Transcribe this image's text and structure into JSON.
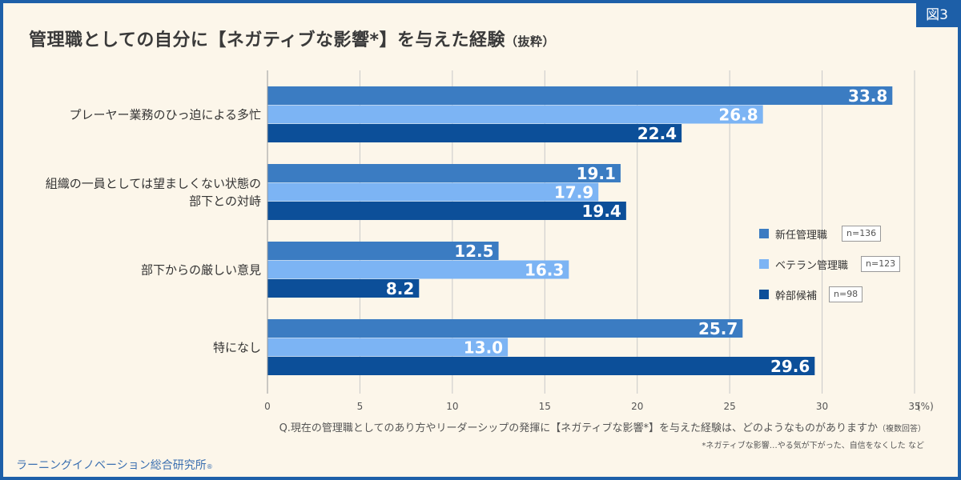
{
  "figure_label": "図3",
  "footer": {
    "company": "ラーニングイノベーション総合研究所",
    "registered_mark": "®"
  },
  "question": {
    "text": "Q.現在の管理職としてのあり方やリーダーシップの発揮に【ネガティブな影響*】を与えた経験は、どのようなものがありますか",
    "suffix": "（複数回答）"
  },
  "note": "*ネガティブな影響…やる気が下がった、自信をなくした など",
  "colors": {
    "series_1": "#3b7cc2",
    "series_2": "#7cb4f4",
    "series_3": "#0c4f99",
    "grid": "#c8c8c8",
    "frame": "#1d5fa8",
    "background": "#fcf6ea"
  },
  "chart_data": {
    "type": "bar",
    "orientation": "horizontal",
    "title": "管理職としての自分に【ネガティブな影響*】を与えた経験",
    "title_suffix": "（抜粋）",
    "categories": [
      [
        "プレーヤー業務のひっ迫による多忙"
      ],
      [
        "組織の一員としては望ましくない状態の",
        "部下との対峙"
      ],
      [
        "部下からの厳しい意見"
      ],
      [
        "特になし"
      ]
    ],
    "series": [
      {
        "name": "新任管理職",
        "n": "n=136",
        "values": [
          33.8,
          19.1,
          12.5,
          25.7
        ]
      },
      {
        "name": "ベテラン管理職",
        "n": "n=123",
        "values": [
          26.8,
          17.9,
          16.3,
          13.0
        ]
      },
      {
        "name": "幹部候補",
        "n": "n=98",
        "values": [
          22.4,
          19.4,
          8.2,
          29.6
        ]
      }
    ],
    "xlim": [
      0,
      35
    ],
    "xticks": [
      "0",
      "5",
      "10",
      "15",
      "20",
      "25",
      "30",
      "35"
    ],
    "xticks_values": [
      0,
      5,
      10,
      15,
      20,
      25,
      30,
      35
    ],
    "x_unit": "(%)",
    "grid": true,
    "legend_position": "right"
  }
}
